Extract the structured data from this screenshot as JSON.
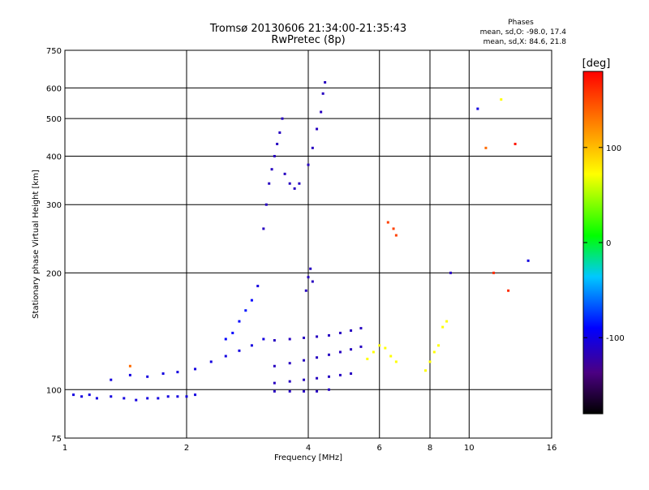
{
  "title_line1": "Tromsø 20130606 21:34:00-21:35:43",
  "title_line2": "RwPretec (8p)",
  "phase_stats": {
    "heading": "Phases",
    "line_o": "mean, sd,O: -98.0, 17.4",
    "line_x": "mean, sd,X:  84.6, 21.8"
  },
  "colorbar": {
    "label": "[deg]",
    "ticks": [
      {
        "value": 100,
        "label": "100"
      },
      {
        "value": 0,
        "label": "0"
      },
      {
        "value": -100,
        "label": "-100"
      }
    ]
  },
  "chart_data": {
    "type": "scatter",
    "xlabel": "Frequency [MHz]",
    "ylabel": "Stationary phase Virtual Height [km]",
    "x_scale": "log",
    "y_scale": "log",
    "xlim": [
      1,
      16
    ],
    "ylim": [
      75,
      750
    ],
    "x_ticks": [
      1,
      2,
      4,
      6,
      8,
      10,
      16
    ],
    "y_ticks": [
      75,
      100,
      200,
      300,
      400,
      500,
      600,
      750
    ],
    "grid": true,
    "color_scale": {
      "quantity": "phase",
      "unit": "deg",
      "range": [
        -180,
        180
      ]
    },
    "series": [
      {
        "points": [
          [
            1.05,
            97,
            -100
          ],
          [
            1.1,
            96,
            -100
          ],
          [
            1.15,
            97,
            -100
          ],
          [
            1.2,
            95,
            -100
          ],
          [
            1.3,
            96,
            -100
          ],
          [
            1.4,
            95,
            -100
          ],
          [
            1.5,
            94,
            -100
          ],
          [
            1.6,
            95,
            -100
          ],
          [
            1.7,
            95,
            -100
          ],
          [
            1.8,
            96,
            -100
          ],
          [
            1.9,
            96,
            -100
          ],
          [
            2.0,
            96,
            -100
          ],
          [
            2.1,
            97,
            -100
          ],
          [
            1.3,
            106,
            -100
          ],
          [
            1.45,
            109,
            -100
          ],
          [
            1.6,
            108,
            -100
          ],
          [
            1.75,
            110,
            -100
          ],
          [
            1.9,
            111,
            -100
          ],
          [
            2.1,
            113,
            -100
          ],
          [
            2.3,
            118,
            -100
          ],
          [
            2.5,
            122,
            -100
          ],
          [
            2.7,
            126,
            -100
          ],
          [
            2.9,
            130,
            -100
          ],
          [
            3.1,
            135,
            -100
          ],
          [
            2.6,
            140,
            -90
          ],
          [
            2.7,
            150,
            -90
          ],
          [
            2.8,
            160,
            -85
          ],
          [
            2.9,
            170,
            -90
          ],
          [
            3.0,
            185,
            -100
          ],
          [
            2.5,
            135,
            -90
          ],
          [
            3.3,
            134,
            -110
          ],
          [
            3.6,
            135,
            -110
          ],
          [
            3.9,
            136,
            -110
          ],
          [
            4.2,
            137,
            -110
          ],
          [
            4.5,
            138,
            -110
          ],
          [
            4.8,
            140,
            -110
          ],
          [
            5.1,
            142,
            -110
          ],
          [
            5.4,
            144,
            -110
          ],
          [
            3.3,
            115,
            -110
          ],
          [
            3.6,
            117,
            -110
          ],
          [
            3.9,
            119,
            -110
          ],
          [
            4.2,
            121,
            -110
          ],
          [
            4.5,
            123,
            -110
          ],
          [
            4.8,
            125,
            -110
          ],
          [
            5.1,
            127,
            -110
          ],
          [
            5.4,
            129,
            -110
          ],
          [
            3.3,
            104,
            -110
          ],
          [
            3.6,
            105,
            -110
          ],
          [
            3.9,
            106,
            -110
          ],
          [
            4.2,
            107,
            -110
          ],
          [
            4.5,
            108,
            -110
          ],
          [
            4.8,
            109,
            -110
          ],
          [
            5.1,
            110,
            -110
          ],
          [
            3.3,
            99,
            -110
          ],
          [
            3.6,
            99,
            -110
          ],
          [
            3.9,
            99,
            -110
          ],
          [
            4.2,
            99,
            -110
          ],
          [
            4.5,
            100,
            -110
          ],
          [
            3.1,
            260,
            -110
          ],
          [
            3.15,
            300,
            -110
          ],
          [
            3.2,
            340,
            -110
          ],
          [
            3.25,
            370,
            -110
          ],
          [
            3.3,
            400,
            -110
          ],
          [
            3.35,
            430,
            -110
          ],
          [
            3.4,
            460,
            -110
          ],
          [
            3.45,
            500,
            -110
          ],
          [
            3.5,
            360,
            -110
          ],
          [
            3.6,
            340,
            -110
          ],
          [
            3.7,
            330,
            -110
          ],
          [
            3.8,
            340,
            -110
          ],
          [
            4.0,
            380,
            -110
          ],
          [
            4.1,
            420,
            -110
          ],
          [
            4.2,
            470,
            -110
          ],
          [
            4.3,
            520,
            -110
          ],
          [
            4.35,
            580,
            -110
          ],
          [
            4.4,
            620,
            -110
          ],
          [
            3.95,
            180,
            -110
          ],
          [
            4.0,
            195,
            -110
          ],
          [
            4.05,
            205,
            -110
          ],
          [
            4.1,
            190,
            -110
          ],
          [
            5.6,
            120,
            60
          ],
          [
            5.8,
            125,
            60
          ],
          [
            6.0,
            130,
            60
          ],
          [
            6.2,
            128,
            60
          ],
          [
            6.4,
            122,
            60
          ],
          [
            6.6,
            118,
            60
          ],
          [
            7.8,
            112,
            60
          ],
          [
            8.0,
            118,
            60
          ],
          [
            8.2,
            125,
            60
          ],
          [
            8.4,
            130,
            60
          ],
          [
            8.6,
            145,
            60
          ],
          [
            8.8,
            150,
            60
          ],
          [
            6.3,
            270,
            150
          ],
          [
            6.5,
            260,
            150
          ],
          [
            6.6,
            250,
            150
          ],
          [
            10.5,
            530,
            -100
          ],
          [
            11.0,
            420,
            130
          ],
          [
            11.5,
            200,
            160
          ],
          [
            12.0,
            560,
            60
          ],
          [
            12.5,
            180,
            160
          ],
          [
            13.0,
            430,
            170
          ],
          [
            14.0,
            215,
            -100
          ],
          [
            9.0,
            200,
            -110
          ],
          [
            1.45,
            115,
            130
          ]
        ]
      }
    ]
  }
}
